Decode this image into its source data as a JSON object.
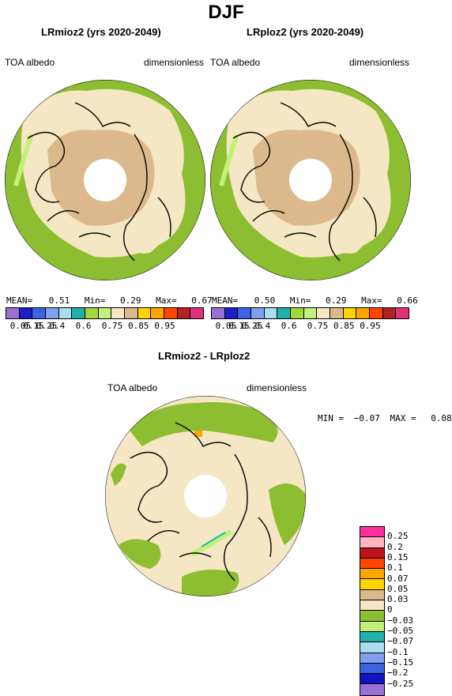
{
  "season": "DJF",
  "panels": [
    {
      "title": "LRmioz2 (yrs 2020-2049)",
      "variable": "TOA albedo",
      "units": "dimensionless",
      "stats": {
        "mean_label": "MEAN=",
        "mean": "0.51",
        "min_label": "Min=",
        "min": "0.29",
        "max_label": "Max=",
        "max": "0.67"
      }
    },
    {
      "title": "LRploz2 (yrs 2020-2049)",
      "variable": "TOA albedo",
      "units": "dimensionless",
      "stats": {
        "mean_label": "MEAN=",
        "mean": "0.50",
        "min_label": "Min=",
        "min": "0.29",
        "max_label": "Max=",
        "max": "0.66"
      }
    }
  ],
  "abs_colorbar": {
    "colors": [
      "#9a6fd6",
      "#1d1fc7",
      "#3d62e0",
      "#7f9ff0",
      "#a8dff0",
      "#20b2aa",
      "#a3d73c",
      "#c2f07a",
      "#f5e7c3",
      "#dcb98c",
      "#ffd400",
      "#ffa500",
      "#ff4500",
      "#b22222",
      "#e0327a"
    ],
    "labels": [
      "0.05",
      "0.15",
      "0.25",
      "0.4",
      "0.6",
      "0.75",
      "0.85",
      "0.95"
    ]
  },
  "diff_panel": {
    "title": "LRmioz2 - LRploz2",
    "variable": "TOA albedo",
    "units": "dimensionless",
    "min_label": "MIN =",
    "min": "−0.07",
    "max_label": "MAX =",
    "max": "0.08"
  },
  "diff_colorbar": {
    "colors": [
      "#ff2fa0",
      "#ffb6c1",
      "#c1121c",
      "#ff4500",
      "#ffa500",
      "#ffd400",
      "#dcb98c",
      "#f5e7c3",
      "#8dbd30",
      "#c2f07a",
      "#20b2aa",
      "#a8dff0",
      "#7f9ff0",
      "#3d62e0",
      "#1212c0",
      "#9a6fd6"
    ],
    "labels": [
      "0.25",
      "0.2",
      "0.15",
      "0.1",
      "0.07",
      "0.05",
      "0.03",
      "0",
      "−0.03",
      "−0.05",
      "−0.07",
      "−0.1",
      "−0.15",
      "−0.2",
      "−0.25"
    ]
  }
}
